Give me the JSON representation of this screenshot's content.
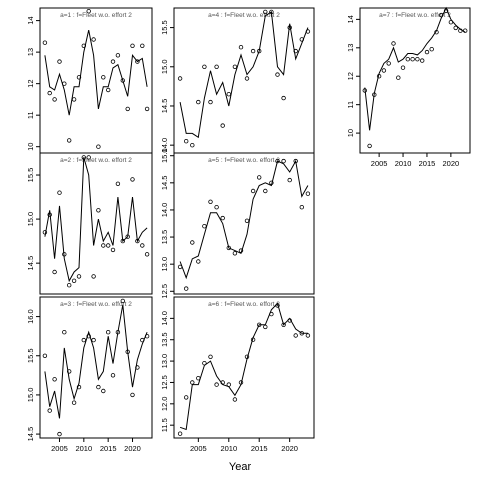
{
  "xlabel": "Year",
  "chart_data": [
    {
      "type": "line",
      "title": "a=1  :  f=Fleet w.o. effort 2",
      "xlim": [
        2001,
        2024
      ],
      "ylim": [
        9.8,
        14.4
      ],
      "yticks": [
        10,
        11,
        12,
        13,
        14
      ],
      "xticks": [],
      "points": {
        "x": [
          2002,
          2003,
          2004,
          2005,
          2006,
          2007,
          2008,
          2009,
          2010,
          2011,
          2012,
          2013,
          2014,
          2015,
          2016,
          2017,
          2018,
          2019,
          2020,
          2021,
          2022,
          2023
        ],
        "y": [
          13.3,
          11.7,
          11.5,
          12.7,
          12.0,
          10.2,
          11.5,
          12.2,
          13.2,
          14.3,
          13.4,
          10.0,
          12.2,
          11.8,
          12.7,
          12.9,
          12.1,
          11.2,
          13.2,
          12.7,
          13.2,
          11.2
        ]
      },
      "fitted": {
        "x": [
          2002,
          2003,
          2004,
          2005,
          2006,
          2007,
          2008,
          2009,
          2010,
          2011,
          2012,
          2013,
          2014,
          2015,
          2016,
          2017,
          2018,
          2019,
          2020,
          2021,
          2022,
          2023
        ],
        "y": [
          12.9,
          11.9,
          11.8,
          12.3,
          11.8,
          11.0,
          11.9,
          11.9,
          13.0,
          13.7,
          12.9,
          11.2,
          11.9,
          11.9,
          12.5,
          12.6,
          12.1,
          11.6,
          12.9,
          12.7,
          12.8,
          11.9
        ]
      }
    },
    {
      "type": "line",
      "title": "a=2  :  f=Fleet w.o. effort 2",
      "xlim": [
        2001,
        2024
      ],
      "ylim": [
        14.15,
        15.75
      ],
      "yticks": [
        14.5,
        15.0,
        15.5
      ],
      "xticks": [],
      "points": {
        "x": [
          2002,
          2003,
          2004,
          2005,
          2006,
          2007,
          2008,
          2009,
          2010,
          2011,
          2012,
          2013,
          2014,
          2015,
          2016,
          2017,
          2018,
          2019,
          2020,
          2021,
          2022,
          2023
        ],
        "y": [
          14.85,
          15.05,
          14.4,
          15.3,
          14.6,
          14.25,
          14.3,
          14.35,
          15.7,
          15.7,
          14.35,
          15.1,
          14.7,
          14.7,
          14.65,
          15.4,
          14.75,
          14.8,
          15.45,
          14.75,
          14.7,
          14.6
        ]
      },
      "fitted": {
        "x": [
          2002,
          2003,
          2004,
          2005,
          2006,
          2007,
          2008,
          2009,
          2010,
          2011,
          2012,
          2013,
          2014,
          2015,
          2016,
          2017,
          2018,
          2019,
          2020,
          2021,
          2022,
          2023
        ],
        "y": [
          14.8,
          15.1,
          14.55,
          15.15,
          14.55,
          14.3,
          14.4,
          14.45,
          15.7,
          15.5,
          14.7,
          15.0,
          14.75,
          14.85,
          14.7,
          15.25,
          14.75,
          14.8,
          15.25,
          14.75,
          14.85,
          14.9
        ]
      }
    },
    {
      "type": "line",
      "title": "a=3  :  f=Fleet w.o. effort 2",
      "xlim": [
        2001,
        2024
      ],
      "ylim": [
        14.45,
        16.25
      ],
      "yticks": [
        14.5,
        15.0,
        15.5,
        16.0
      ],
      "xticks": [
        2005,
        2010,
        2015,
        2020
      ],
      "points": {
        "x": [
          2002,
          2003,
          2004,
          2005,
          2006,
          2007,
          2008,
          2009,
          2010,
          2011,
          2012,
          2013,
          2014,
          2015,
          2016,
          2017,
          2018,
          2019,
          2020,
          2021,
          2022,
          2023
        ],
        "y": [
          15.5,
          14.8,
          15.2,
          14.5,
          15.8,
          15.3,
          14.9,
          15.1,
          15.7,
          15.75,
          15.7,
          15.1,
          15.05,
          15.8,
          15.25,
          15.8,
          16.2,
          15.55,
          15.0,
          15.35,
          15.7,
          15.75
        ]
      },
      "fitted": {
        "x": [
          2002,
          2003,
          2004,
          2005,
          2006,
          2007,
          2008,
          2009,
          2010,
          2011,
          2012,
          2013,
          2014,
          2015,
          2016,
          2017,
          2018,
          2019,
          2020,
          2021,
          2022,
          2023
        ],
        "y": [
          15.3,
          14.85,
          15.05,
          14.7,
          15.6,
          15.2,
          14.95,
          15.15,
          15.6,
          15.8,
          15.6,
          15.2,
          15.3,
          15.75,
          15.4,
          15.8,
          16.15,
          15.55,
          15.1,
          15.45,
          15.65,
          15.8
        ]
      }
    },
    {
      "type": "line",
      "title": "a=4  :  f=Fleet w.o. effort 2",
      "xlim": [
        2001,
        2024
      ],
      "ylim": [
        13.9,
        15.75
      ],
      "yticks": [
        14.0,
        14.5,
        15.0,
        15.5
      ],
      "xticks": [],
      "points": {
        "x": [
          2002,
          2003,
          2004,
          2005,
          2006,
          2007,
          2008,
          2009,
          2010,
          2011,
          2012,
          2013,
          2014,
          2015,
          2016,
          2017,
          2018,
          2019,
          2020,
          2021,
          2022,
          2023
        ],
        "y": [
          14.85,
          14.05,
          14.0,
          14.55,
          15.0,
          14.55,
          15.0,
          14.25,
          14.65,
          15.0,
          15.25,
          14.85,
          15.2,
          15.2,
          15.7,
          15.7,
          14.9,
          14.6,
          15.5,
          15.2,
          15.35,
          15.45
        ]
      },
      "fitted": {
        "x": [
          2002,
          2003,
          2004,
          2005,
          2006,
          2007,
          2008,
          2009,
          2010,
          2011,
          2012,
          2013,
          2014,
          2015,
          2016,
          2017,
          2018,
          2019,
          2020,
          2021,
          2022,
          2023
        ],
        "y": [
          14.55,
          14.15,
          14.15,
          14.1,
          14.6,
          14.95,
          14.65,
          14.8,
          14.5,
          14.9,
          15.15,
          14.9,
          15.0,
          15.2,
          15.65,
          15.7,
          15.0,
          14.9,
          15.55,
          15.1,
          15.3,
          15.5
        ]
      }
    },
    {
      "type": "line",
      "title": "a=5  :  f=Fleet w.o. effort 2",
      "xlim": [
        2001,
        2024
      ],
      "ylim": [
        12.45,
        15.05
      ],
      "yticks": [
        12.5,
        13.0,
        13.5,
        14.0,
        14.5,
        15.0
      ],
      "xticks": [],
      "points": {
        "x": [
          2002,
          2003,
          2004,
          2005,
          2006,
          2007,
          2008,
          2009,
          2010,
          2011,
          2012,
          2013,
          2014,
          2015,
          2016,
          2017,
          2018,
          2019,
          2020,
          2021,
          2022,
          2023
        ],
        "y": [
          12.95,
          12.55,
          13.4,
          13.05,
          13.7,
          14.15,
          14.05,
          13.85,
          13.3,
          13.2,
          13.25,
          13.8,
          14.35,
          14.6,
          14.35,
          14.5,
          14.9,
          14.9,
          14.55,
          14.9,
          14.05,
          14.3
        ]
      },
      "fitted": {
        "x": [
          2002,
          2003,
          2004,
          2005,
          2006,
          2007,
          2008,
          2009,
          2010,
          2011,
          2012,
          2013,
          2014,
          2015,
          2016,
          2017,
          2018,
          2019,
          2020,
          2021,
          2022,
          2023
        ],
        "y": [
          13.05,
          12.75,
          13.1,
          13.15,
          13.55,
          13.95,
          13.95,
          13.75,
          13.3,
          13.25,
          13.2,
          13.55,
          14.2,
          14.45,
          14.5,
          14.45,
          14.9,
          14.85,
          14.7,
          14.9,
          14.25,
          14.45
        ]
      }
    },
    {
      "type": "line",
      "title": "a=6  :  f=Fleet w.o. effort 2",
      "xlim": [
        2001,
        2024
      ],
      "ylim": [
        11.2,
        14.5
      ],
      "yticks": [
        11.5,
        12.0,
        12.5,
        13.0,
        13.5,
        14.0
      ],
      "xticks": [
        2005,
        2010,
        2015,
        2020
      ],
      "points": {
        "x": [
          2002,
          2003,
          2004,
          2005,
          2006,
          2007,
          2008,
          2009,
          2010,
          2011,
          2012,
          2013,
          2014,
          2015,
          2016,
          2017,
          2018,
          2019,
          2020,
          2021,
          2022,
          2023
        ],
        "y": [
          11.3,
          12.15,
          12.5,
          12.6,
          12.95,
          13.1,
          12.45,
          12.5,
          12.45,
          12.1,
          12.5,
          13.1,
          13.5,
          13.85,
          13.8,
          14.1,
          14.3,
          13.85,
          13.95,
          13.6,
          13.65,
          13.6
        ]
      },
      "fitted": {
        "x": [
          2002,
          2003,
          2004,
          2005,
          2006,
          2007,
          2008,
          2009,
          2010,
          2011,
          2012,
          2013,
          2014,
          2015,
          2016,
          2017,
          2018,
          2019,
          2020,
          2021,
          2022,
          2023
        ],
        "y": [
          11.45,
          11.4,
          12.45,
          12.45,
          12.9,
          13.0,
          12.65,
          12.45,
          12.4,
          12.2,
          12.45,
          13.05,
          13.55,
          13.85,
          13.85,
          14.2,
          14.35,
          13.85,
          14.0,
          13.75,
          13.65,
          13.65
        ]
      }
    },
    {
      "type": "line",
      "title": "a=7  :  f=Fleet w.o. effort 2",
      "xlim": [
        2001,
        2024
      ],
      "ylim": [
        9.3,
        14.4
      ],
      "yticks": [
        10,
        11,
        12,
        13,
        14
      ],
      "xticks": [
        2005,
        2010,
        2015,
        2020
      ],
      "points": {
        "x": [
          2002,
          2003,
          2004,
          2005,
          2006,
          2007,
          2008,
          2009,
          2010,
          2011,
          2012,
          2013,
          2014,
          2015,
          2016,
          2017,
          2018,
          2019,
          2020,
          2021,
          2022,
          2023
        ],
        "y": [
          11.5,
          9.55,
          11.35,
          12.0,
          12.2,
          12.45,
          13.15,
          11.95,
          12.3,
          12.6,
          12.6,
          12.6,
          12.55,
          12.85,
          12.95,
          13.55,
          14.15,
          14.3,
          13.9,
          13.7,
          13.6,
          13.6
        ]
      },
      "fitted": {
        "x": [
          2002,
          2003,
          2004,
          2005,
          2006,
          2007,
          2008,
          2009,
          2010,
          2011,
          2012,
          2013,
          2014,
          2015,
          2016,
          2017,
          2018,
          2019,
          2020,
          2021,
          2022,
          2023
        ],
        "y": [
          11.6,
          10.1,
          11.4,
          12.1,
          12.45,
          12.6,
          13.0,
          12.5,
          12.6,
          12.8,
          12.8,
          12.75,
          12.9,
          13.15,
          13.35,
          13.6,
          14.05,
          14.4,
          14.0,
          13.8,
          13.65,
          13.55
        ]
      }
    }
  ]
}
